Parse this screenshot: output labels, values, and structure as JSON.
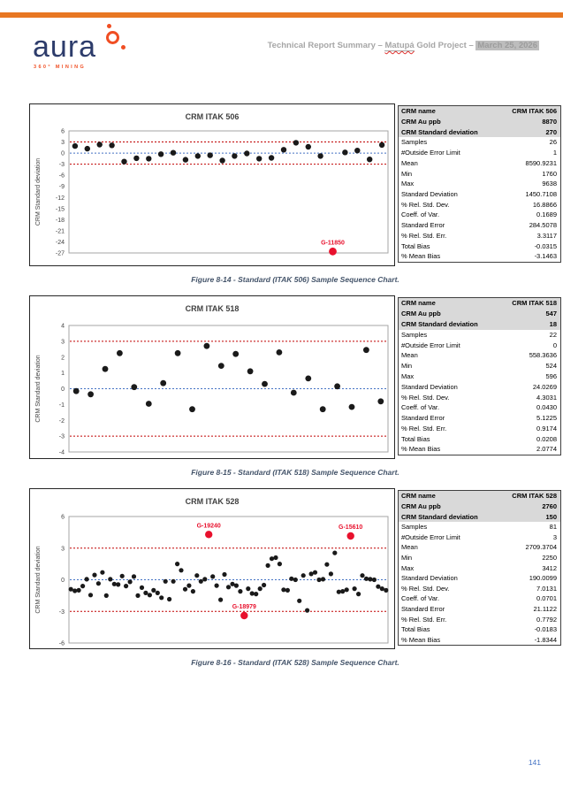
{
  "header": {
    "brand": "aura",
    "tagline": "360° MINING",
    "title_part1": "Technical Report Summary – ",
    "title_project": "Matupá",
    "title_part2": " Gold Project – ",
    "title_date": "March 25, 2026"
  },
  "page_number": "141",
  "colors": {
    "accent_orange": "#E87722",
    "brand_navy": "#2D3C6B",
    "logo_orange": "#F04E23",
    "control_line_red": "#C00000",
    "control_line_blue": "#4472C4",
    "point_black": "#1A1A1A",
    "outlier_red": "#E8112D",
    "caption_blue": "#44546A",
    "page_number_blue": "#4472C4",
    "table_header_bg": "#D9D9D9",
    "axis_text": "#404040",
    "plot_border": "#A6A6A6"
  },
  "captions": [
    "Figure 8-14 - Standard (ITAK 506) Sample Sequence Chart.",
    "Figure 8-15 - Standard (ITAK 518) Sample Sequence Chart.",
    "Figure 8-16 - Standard (ITAK 528) Sample Sequence Chart."
  ],
  "chart_data": [
    {
      "type": "scatter",
      "title": "CRM ITAK 506",
      "xlabel": "",
      "ylabel": "CRM Standard deviation",
      "x": "sample sequence (unlabeled)",
      "ylim": [
        -27,
        6
      ],
      "ytick_step": 3,
      "grid": false,
      "control_lines": {
        "upper": 3,
        "lower": -3,
        "center": 0
      },
      "points": [
        1.9,
        1.2,
        2.3,
        2.1,
        -2.3,
        -1.4,
        -1.5,
        -0.3,
        0.1,
        -1.8,
        -0.8,
        -0.6,
        -2.0,
        -0.8,
        -0.1,
        -1.5,
        -1.3,
        0.9,
        2.8,
        1.7,
        -0.8,
        -26.6,
        0.2,
        0.7,
        -1.7,
        2.2
      ],
      "outliers": [
        {
          "index": 21,
          "value": -26.6,
          "label": "G-11850"
        }
      ]
    },
    {
      "type": "scatter",
      "title": "CRM ITAK 518",
      "xlabel": "",
      "ylabel": "CRM Standard deviation",
      "x": "sample sequence (unlabeled)",
      "ylim": [
        -4,
        4
      ],
      "ytick_step": 1,
      "grid": false,
      "control_lines": {
        "upper": 3,
        "lower": -3,
        "center": 0
      },
      "points": [
        -0.15,
        -0.35,
        1.25,
        2.25,
        0.1,
        -0.95,
        0.35,
        2.25,
        -1.3,
        2.7,
        1.45,
        2.2,
        1.1,
        0.3,
        2.3,
        -0.25,
        0.65,
        -1.3,
        0.15,
        -1.15,
        2.45,
        -0.8
      ],
      "outliers": []
    },
    {
      "type": "scatter",
      "title": "CRM ITAK 528",
      "xlabel": "",
      "ylabel": "CRM Standard deviation",
      "x": "sample sequence (unlabeled)",
      "ylim": [
        -6,
        6
      ],
      "ytick_step": 3,
      "grid": false,
      "control_lines": {
        "upper": 3,
        "lower": -3,
        "center": 0
      },
      "points": [
        -0.9,
        -1.05,
        -1.0,
        -0.6,
        0.05,
        -1.45,
        0.45,
        -0.35,
        0.7,
        -1.5,
        0.05,
        -0.4,
        -0.45,
        0.35,
        -0.6,
        -0.2,
        0.3,
        -1.5,
        -0.75,
        -1.25,
        -1.45,
        -1.0,
        -1.25,
        -1.7,
        -0.15,
        -1.85,
        -0.15,
        1.5,
        0.9,
        -0.9,
        -0.55,
        -1.1,
        0.4,
        -0.15,
        0.05,
        4.3,
        0.3,
        -0.55,
        -1.9,
        0.5,
        -0.7,
        -0.4,
        -0.55,
        -1.1,
        -3.4,
        -0.85,
        -1.3,
        -1.35,
        -0.85,
        -0.5,
        1.35,
        2.0,
        2.1,
        1.5,
        -0.95,
        -1.0,
        0.1,
        0.0,
        -2.0,
        0.4,
        -2.9,
        0.55,
        0.7,
        0.0,
        0.05,
        1.45,
        0.55,
        2.55,
        -1.15,
        -1.1,
        -0.95,
        4.15,
        -0.85,
        -1.35,
        0.4,
        0.1,
        0.05,
        0.0,
        -0.65,
        -0.85,
        -1.0
      ],
      "outliers": [
        {
          "index": 35,
          "value": 4.3,
          "label": "G-19240"
        },
        {
          "index": 44,
          "value": -3.4,
          "label": "G-18979"
        },
        {
          "index": 71,
          "value": 4.15,
          "label": "G-15610"
        }
      ]
    }
  ],
  "tables": [
    {
      "header_row_count": 3,
      "rows": [
        {
          "label": "CRM name",
          "value": "CRM ITAK 506"
        },
        {
          "label": "CRM Au ppb",
          "value": "8870"
        },
        {
          "label": "CRM Standard deviation",
          "value": "270"
        },
        {
          "label": "Samples",
          "value": "26"
        },
        {
          "label": "#Outside Error Limit",
          "value": "1"
        },
        {
          "label": "Mean",
          "value": "8590.9231"
        },
        {
          "label": "Min",
          "value": "1760"
        },
        {
          "label": "Max",
          "value": "9638"
        },
        {
          "label": "Standard Deviation",
          "value": "1450.7108"
        },
        {
          "label": "% Rel. Std. Dev.",
          "value": "16.8866"
        },
        {
          "label": "Coeff. of Var.",
          "value": "0.1689"
        },
        {
          "label": "Standard Error",
          "value": "284.5078"
        },
        {
          "label": "% Rel. Std. Err.",
          "value": "3.3117"
        },
        {
          "label": "Total Bias",
          "value": "-0.0315"
        },
        {
          "label": "% Mean Bias",
          "value": "-3.1463"
        }
      ]
    },
    {
      "header_row_count": 3,
      "rows": [
        {
          "label": "CRM name",
          "value": "CRM ITAK 518"
        },
        {
          "label": "CRM Au ppb",
          "value": "547"
        },
        {
          "label": "CRM Standard deviation",
          "value": "18"
        },
        {
          "label": "Samples",
          "value": "22"
        },
        {
          "label": "#Outside Error Limit",
          "value": "0"
        },
        {
          "label": "Mean",
          "value": "558.3636"
        },
        {
          "label": "Min",
          "value": "524"
        },
        {
          "label": "Max",
          "value": "596"
        },
        {
          "label": "Standard Deviation",
          "value": "24.0269"
        },
        {
          "label": "% Rel. Std. Dev.",
          "value": "4.3031"
        },
        {
          "label": "Coeff. of Var.",
          "value": "0.0430"
        },
        {
          "label": "Standard Error",
          "value": "5.1225"
        },
        {
          "label": "% Rel. Std. Err.",
          "value": "0.9174"
        },
        {
          "label": "Total Bias",
          "value": "0.0208"
        },
        {
          "label": "% Mean Bias",
          "value": "2.0774"
        }
      ]
    },
    {
      "header_row_count": 3,
      "rows": [
        {
          "label": "CRM name",
          "value": "CRM ITAK 528"
        },
        {
          "label": "CRM Au ppb",
          "value": "2760"
        },
        {
          "label": "CRM Standard deviation",
          "value": "150"
        },
        {
          "label": "Samples",
          "value": "81"
        },
        {
          "label": "#Outside Error Limit",
          "value": "3"
        },
        {
          "label": "Mean",
          "value": "2709.3704"
        },
        {
          "label": "Min",
          "value": "2250"
        },
        {
          "label": "Max",
          "value": "3412"
        },
        {
          "label": "Standard Deviation",
          "value": "190.0099"
        },
        {
          "label": "% Rel. Std. Dev.",
          "value": "7.0131"
        },
        {
          "label": "Coeff. of Var.",
          "value": "0.0701"
        },
        {
          "label": "Standard Error",
          "value": "21.1122"
        },
        {
          "label": "% Rel. Std. Err.",
          "value": "0.7792"
        },
        {
          "label": "Total Bias",
          "value": "-0.0183"
        },
        {
          "label": "% Mean Bias",
          "value": "-1.8344"
        }
      ]
    }
  ]
}
